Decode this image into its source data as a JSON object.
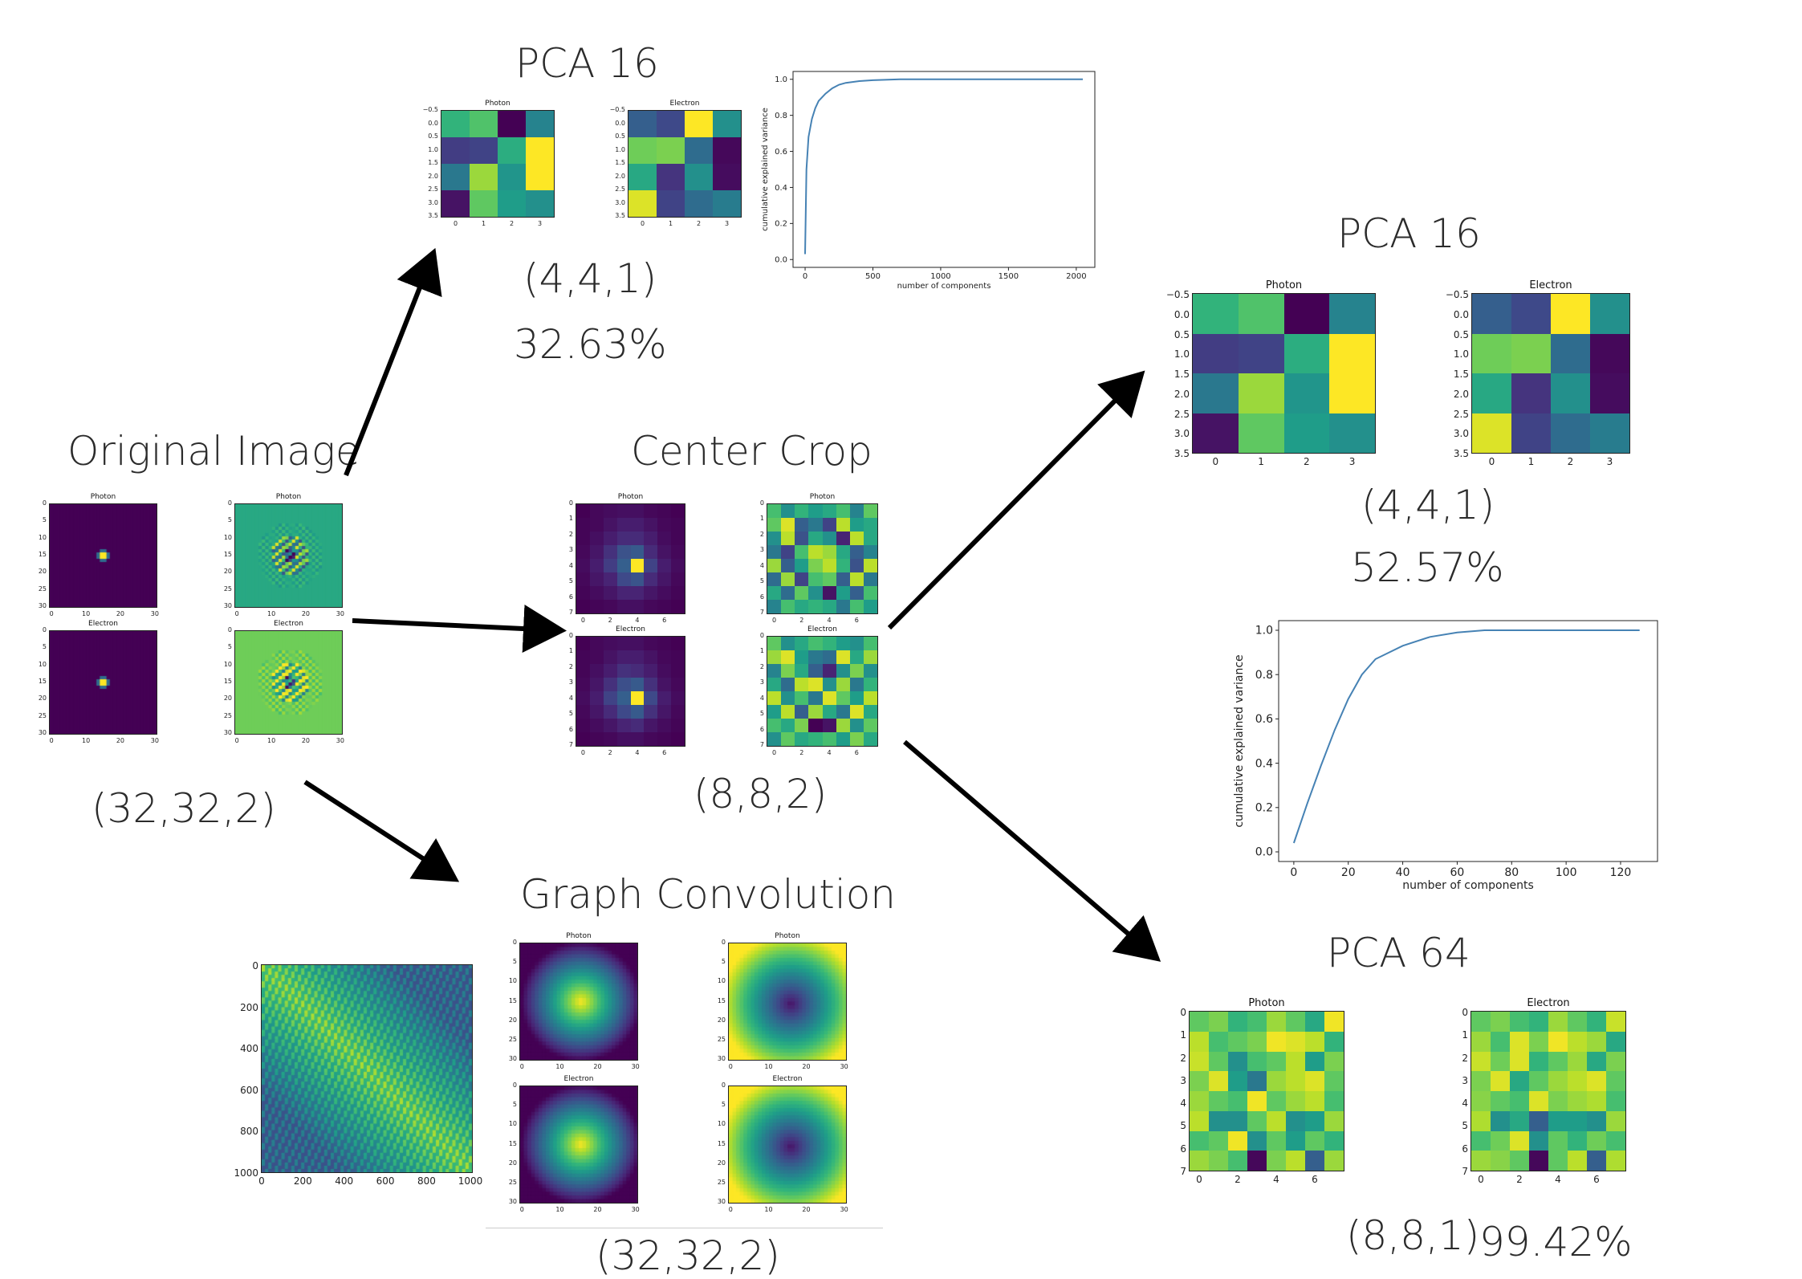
{
  "titles": {
    "pca16_top": "PCA 16",
    "original": "Original Image",
    "center_crop": "Center Crop",
    "graph_conv": "Graph Convolution",
    "pca16_right": "PCA 16",
    "pca64": "PCA 64"
  },
  "shapes": {
    "pca16_top": "(4,4,1)",
    "original": "(32,32,2)",
    "center_crop": "(8,8,2)",
    "pca16_right": "(4,4,1)",
    "graph_conv": "(32,32,2)",
    "pca64": "(8,8,1)"
  },
  "percents": {
    "pca16_top": "32.63%",
    "pca16_right": "52.57%",
    "pca64": "99.42%"
  },
  "labels": {
    "photon": "Photon",
    "electron": "Electron"
  },
  "colors": {
    "viridis_dark": "#440154",
    "viridis_yellow": "#fde725",
    "line_blue": "#4682b4",
    "arrow": "#000000"
  },
  "chart_data": [
    {
      "type": "line",
      "xlabel": "number of components",
      "ylabel": "cumulative explained variance",
      "xlim": [
        0,
        2048
      ],
      "ylim": [
        0,
        1.0
      ],
      "xticks": [
        0,
        500,
        1000,
        1500,
        2000
      ],
      "yticks": [
        0.0,
        0.2,
        0.4,
        0.6,
        0.8,
        1.0
      ],
      "x": [
        0,
        10,
        25,
        50,
        75,
        100,
        150,
        200,
        250,
        300,
        400,
        500,
        700,
        1000,
        2048
      ],
      "y": [
        0.03,
        0.5,
        0.68,
        0.78,
        0.84,
        0.88,
        0.92,
        0.95,
        0.97,
        0.98,
        0.99,
        0.995,
        1.0,
        1.0,
        1.0
      ]
    },
    {
      "type": "line",
      "xlabel": "number of components",
      "ylabel": "cumulative explained variance",
      "xlim": [
        0,
        128
      ],
      "ylim": [
        0,
        1.0
      ],
      "xticks": [
        0,
        20,
        40,
        60,
        80,
        100,
        120
      ],
      "yticks": [
        0.0,
        0.2,
        0.4,
        0.6,
        0.8,
        1.0
      ],
      "x": [
        0,
        5,
        10,
        15,
        20,
        25,
        30,
        35,
        40,
        50,
        60,
        70,
        80,
        100,
        127
      ],
      "y": [
        0.04,
        0.22,
        0.39,
        0.55,
        0.69,
        0.8,
        0.87,
        0.9,
        0.93,
        0.97,
        0.99,
        1.0,
        1.0,
        1.0,
        1.0
      ]
    }
  ],
  "heatmaps": {
    "pca16_photon": [
      [
        0.65,
        0.72,
        0.0,
        0.45
      ],
      [
        0.18,
        0.2,
        0.62,
        1.0
      ],
      [
        0.4,
        0.85,
        0.52,
        1.0
      ],
      [
        0.05,
        0.75,
        0.55,
        0.5
      ]
    ],
    "pca16_electron": [
      [
        0.3,
        0.22,
        1.0,
        0.5
      ],
      [
        0.78,
        0.8,
        0.35,
        0.02
      ],
      [
        0.6,
        0.15,
        0.5,
        0.03
      ],
      [
        0.95,
        0.2,
        0.35,
        0.42
      ]
    ],
    "crop_photon": [
      [
        0.0,
        0.02,
        0.03,
        0.04,
        0.04,
        0.02,
        0.01,
        0.0
      ],
      [
        0.01,
        0.02,
        0.05,
        0.08,
        0.08,
        0.05,
        0.02,
        0.01
      ],
      [
        0.01,
        0.04,
        0.08,
        0.12,
        0.12,
        0.08,
        0.03,
        0.01
      ],
      [
        0.02,
        0.06,
        0.14,
        0.25,
        0.28,
        0.12,
        0.05,
        0.02
      ],
      [
        0.03,
        0.08,
        0.18,
        0.3,
        1.0,
        0.2,
        0.08,
        0.03
      ],
      [
        0.02,
        0.06,
        0.1,
        0.22,
        0.26,
        0.12,
        0.06,
        0.02
      ],
      [
        0.01,
        0.03,
        0.06,
        0.1,
        0.1,
        0.06,
        0.03,
        0.01
      ],
      [
        0.0,
        0.01,
        0.02,
        0.04,
        0.04,
        0.02,
        0.01,
        0.0
      ]
    ],
    "crop_electron": [
      [
        0.0,
        0.02,
        0.03,
        0.04,
        0.04,
        0.02,
        0.01,
        0.0
      ],
      [
        0.01,
        0.02,
        0.05,
        0.08,
        0.08,
        0.05,
        0.02,
        0.01
      ],
      [
        0.01,
        0.04,
        0.08,
        0.14,
        0.12,
        0.08,
        0.03,
        0.01
      ],
      [
        0.02,
        0.06,
        0.14,
        0.24,
        0.28,
        0.14,
        0.05,
        0.02
      ],
      [
        0.03,
        0.08,
        0.2,
        0.3,
        1.0,
        0.22,
        0.08,
        0.03
      ],
      [
        0.02,
        0.06,
        0.12,
        0.22,
        0.28,
        0.14,
        0.06,
        0.02
      ],
      [
        0.01,
        0.03,
        0.06,
        0.1,
        0.12,
        0.06,
        0.03,
        0.01
      ],
      [
        0.0,
        0.01,
        0.02,
        0.04,
        0.04,
        0.02,
        0.01,
        0.0
      ]
    ],
    "crop2_photon": [
      [
        0.7,
        0.5,
        0.65,
        0.55,
        0.6,
        0.7,
        0.45,
        0.75
      ],
      [
        0.75,
        0.95,
        0.3,
        0.4,
        0.2,
        0.9,
        0.55,
        0.6
      ],
      [
        0.5,
        0.9,
        0.25,
        0.6,
        0.5,
        0.1,
        0.9,
        0.6
      ],
      [
        0.4,
        0.2,
        0.7,
        0.9,
        0.85,
        0.6,
        0.3,
        0.45
      ],
      [
        0.85,
        0.3,
        0.55,
        0.8,
        0.9,
        0.65,
        0.25,
        0.9
      ],
      [
        0.35,
        0.85,
        0.2,
        0.7,
        0.75,
        0.3,
        0.9,
        0.4
      ],
      [
        0.6,
        0.35,
        0.75,
        0.5,
        0.05,
        0.55,
        0.3,
        0.7
      ],
      [
        0.45,
        0.7,
        0.6,
        0.65,
        0.6,
        0.4,
        0.7,
        0.55
      ]
    ],
    "crop2_electron": [
      [
        0.75,
        0.5,
        0.6,
        0.7,
        0.65,
        0.55,
        0.5,
        0.7
      ],
      [
        0.85,
        0.95,
        0.55,
        0.4,
        0.35,
        0.95,
        0.6,
        0.85
      ],
      [
        0.45,
        0.8,
        0.6,
        0.3,
        0.1,
        0.5,
        0.8,
        0.5
      ],
      [
        0.6,
        0.35,
        0.9,
        0.95,
        0.5,
        0.85,
        0.4,
        0.65
      ],
      [
        0.9,
        0.5,
        0.7,
        0.4,
        0.95,
        0.75,
        0.55,
        0.9
      ],
      [
        0.55,
        0.9,
        0.3,
        0.85,
        0.6,
        0.4,
        0.95,
        0.6
      ],
      [
        0.7,
        0.6,
        0.8,
        0.0,
        0.05,
        0.85,
        0.5,
        0.75
      ],
      [
        0.5,
        0.75,
        0.6,
        0.65,
        0.7,
        0.55,
        0.8,
        0.6
      ]
    ],
    "pca64_photon": [
      [
        0.75,
        0.8,
        0.65,
        0.7,
        0.85,
        0.75,
        0.6,
        0.98
      ],
      [
        0.9,
        0.7,
        0.75,
        0.8,
        0.98,
        0.95,
        0.9,
        0.65
      ],
      [
        0.92,
        0.75,
        0.5,
        0.7,
        0.75,
        0.9,
        0.55,
        0.8
      ],
      [
        0.8,
        0.95,
        0.55,
        0.4,
        0.85,
        0.9,
        0.95,
        0.75
      ],
      [
        0.85,
        0.75,
        0.7,
        0.98,
        0.75,
        0.85,
        0.9,
        0.7
      ],
      [
        0.9,
        0.5,
        0.5,
        0.75,
        0.9,
        0.5,
        0.55,
        0.85
      ],
      [
        0.7,
        0.75,
        0.98,
        0.5,
        0.75,
        0.55,
        0.75,
        0.65
      ],
      [
        0.85,
        0.8,
        0.7,
        0.02,
        0.8,
        0.9,
        0.3,
        0.85
      ]
    ],
    "pca64_electron": [
      [
        0.75,
        0.8,
        0.7,
        0.65,
        0.85,
        0.75,
        0.65,
        0.92
      ],
      [
        0.85,
        0.7,
        0.95,
        0.8,
        0.98,
        0.9,
        0.85,
        0.6
      ],
      [
        0.92,
        0.78,
        0.95,
        0.65,
        0.75,
        0.85,
        0.6,
        0.8
      ],
      [
        0.8,
        0.95,
        0.6,
        0.75,
        0.85,
        0.9,
        0.95,
        0.75
      ],
      [
        0.82,
        0.75,
        0.7,
        0.95,
        0.8,
        0.85,
        0.88,
        0.7
      ],
      [
        0.88,
        0.5,
        0.6,
        0.3,
        0.55,
        0.55,
        0.5,
        0.85
      ],
      [
        0.7,
        0.78,
        0.95,
        0.5,
        0.75,
        0.65,
        0.78,
        0.7
      ],
      [
        0.85,
        0.82,
        0.75,
        0.02,
        0.75,
        0.9,
        0.3,
        0.88
      ]
    ]
  },
  "axes": {
    "pca4_y": [
      "−0.5",
      "0.0",
      "0.5",
      "1.0",
      "1.5",
      "2.0",
      "2.5",
      "3.0",
      "3.5"
    ],
    "pca4_x": [
      "0",
      "1",
      "2",
      "3"
    ],
    "orig_y": [
      "0",
      "5",
      "10",
      "15",
      "20",
      "25",
      "30"
    ],
    "orig_x": [
      "0",
      "10",
      "20",
      "30"
    ],
    "crop_y": [
      "0",
      "1",
      "2",
      "3",
      "4",
      "5",
      "6",
      "7"
    ],
    "crop_x": [
      "0",
      "2",
      "4",
      "6"
    ],
    "adj_y": [
      "0",
      "200",
      "400",
      "600",
      "800",
      "1000"
    ],
    "adj_x": [
      "0",
      "200",
      "400",
      "600",
      "800",
      "1000"
    ],
    "gc_x": [
      "0",
      "10",
      "20",
      "30"
    ]
  }
}
